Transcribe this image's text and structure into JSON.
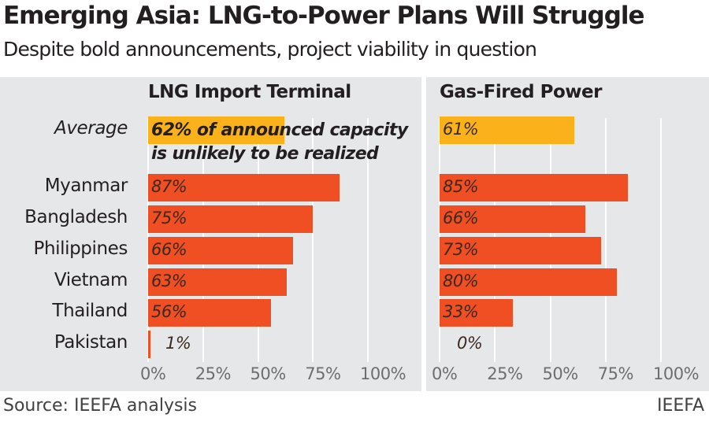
{
  "chart_data": {
    "type": "bar",
    "title": "Emerging Asia: LNG-to-Power Plans Will Struggle",
    "subtitle": "Despite bold announcements, project viability in question",
    "categories": [
      "Average",
      "Myanmar",
      "Bangladesh",
      "Philippines",
      "Vietnam",
      "Thailand",
      "Pakistan"
    ],
    "series": [
      {
        "name": "LNG Import Terminal",
        "values": [
          62,
          87,
          75,
          66,
          63,
          56,
          1
        ],
        "labels": [
          "62%",
          "87%",
          "75%",
          "66%",
          "63%",
          "56%",
          "1%"
        ]
      },
      {
        "name": "Gas-Fired Power",
        "values": [
          61,
          85,
          66,
          73,
          80,
          33,
          0
        ],
        "labels": [
          "61%",
          "85%",
          "66%",
          "73%",
          "80%",
          "33%",
          "0%"
        ]
      }
    ],
    "annotation": [
      "62% of announced capacity",
      "is unlikely to be realized"
    ],
    "xticks": [
      "0%",
      "25%",
      "50%",
      "75%",
      "100%"
    ],
    "xlim": [
      0,
      100
    ],
    "colors": {
      "average": "#fbb21a",
      "country": "#f04e23"
    },
    "source": "Source: IEEFA analysis",
    "brand": "IEEFA"
  }
}
